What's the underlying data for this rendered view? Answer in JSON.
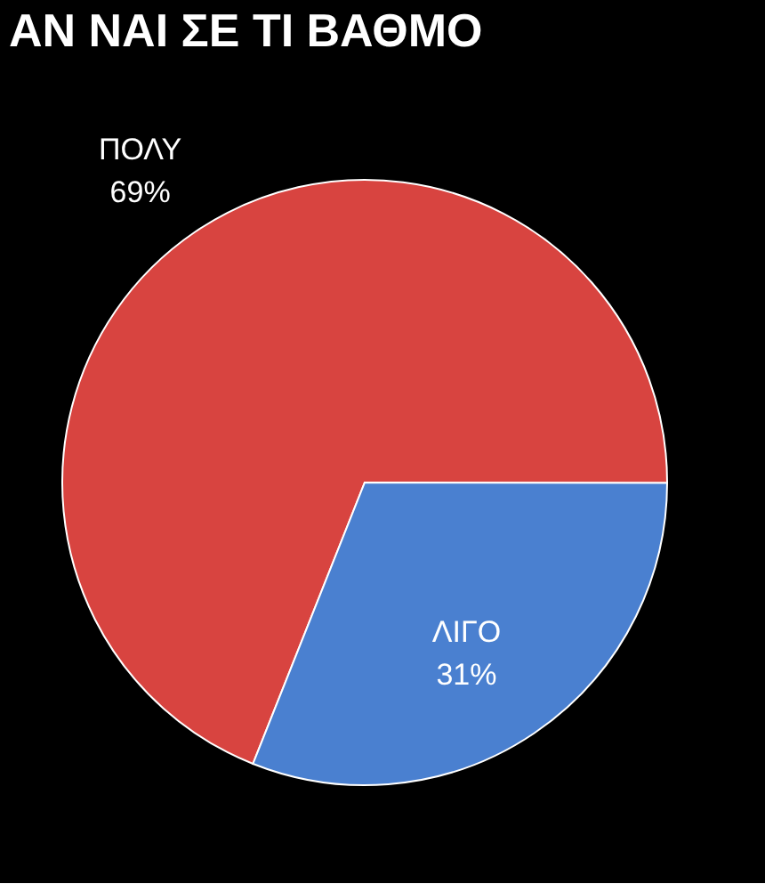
{
  "chart_data": {
    "type": "pie",
    "title": "ΑΝ ΝΑΙ ΣΕ ΤΙ ΒΑΘΜΟ",
    "categories": [
      "ΠΟΛΥ",
      "ΛΙΓΟ"
    ],
    "values": [
      69,
      31
    ],
    "colors": [
      "#d84440",
      "#4a80d0"
    ],
    "value_labels": [
      "69%",
      "31%"
    ],
    "legend": false
  }
}
